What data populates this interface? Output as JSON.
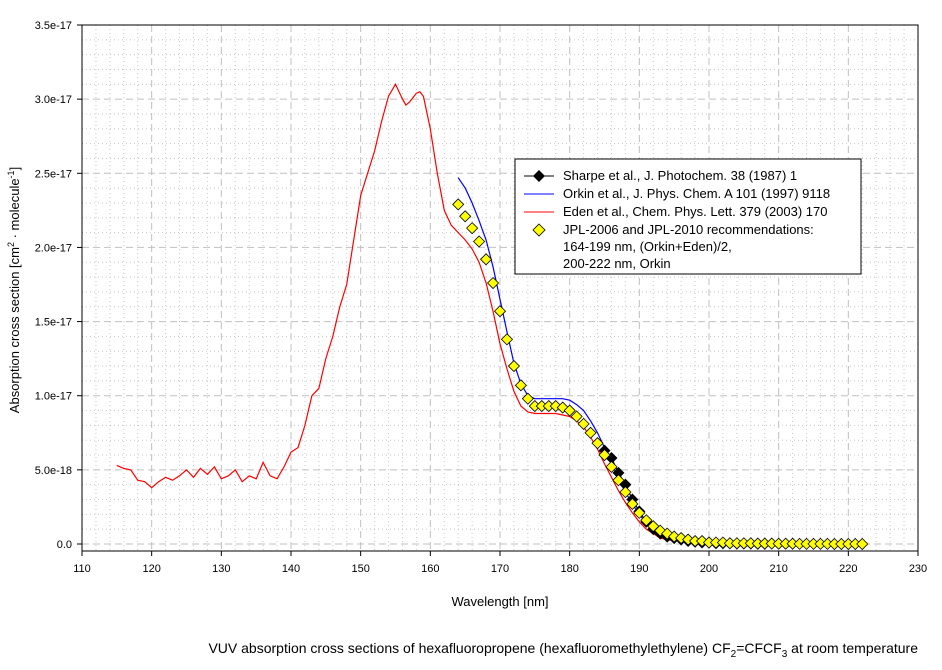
{
  "chart_data": {
    "type": "line",
    "xlabel": "Wavelength [nm]",
    "ylabel": {
      "main": "Absorption cross section [cm",
      "sup1": "2",
      "mid": " · molecule",
      "sup2": "-1",
      "end": "]"
    },
    "xlim": [
      110,
      230
    ],
    "ylim": [
      0,
      3.5e-17
    ],
    "x_ticks": [
      110,
      120,
      130,
      140,
      150,
      160,
      170,
      180,
      190,
      200,
      210,
      220,
      230
    ],
    "y_ticks": [
      0,
      5e-18,
      1e-17,
      1.5e-17,
      2e-17,
      2.5e-17,
      3e-17,
      3.5e-17
    ],
    "y_tick_labels": [
      "0.0",
      "5.0e-18",
      "1.0e-17",
      "1.5e-17",
      "2.0e-17",
      "2.5e-17",
      "3.0e-17",
      "3.5e-17"
    ],
    "grid": true,
    "legend_position": "upper-right",
    "caption": {
      "a": "VUV absorption cross sections of hexafluoropropene (hexafluoromethylethylene) CF",
      "b": "2",
      "c": "=CFCF",
      "d": "3",
      "e": " at room temperature"
    },
    "series": [
      {
        "name": "Sharpe et al., J. Photochem. 38 (1987) 1",
        "style": "line-diamond",
        "color": "#000000",
        "x": [
          185,
          186,
          187,
          188,
          189,
          190,
          191,
          192,
          193,
          194,
          195,
          196,
          197,
          198,
          199,
          200,
          201,
          202,
          203,
          204,
          205,
          206,
          207,
          208
        ],
        "y": [
          6.3e-18,
          5.8e-18,
          4.8e-18,
          4e-18,
          3e-18,
          2.2e-18,
          1.5e-18,
          1e-18,
          7e-19,
          5e-19,
          4e-19,
          3e-19,
          2e-19,
          1.5e-19,
          1e-19,
          1e-19,
          5e-20,
          5e-20,
          5e-20,
          3e-20,
          3e-20,
          3e-20,
          2e-20,
          2e-20
        ]
      },
      {
        "name": "Orkin et al., J. Phys. Chem. A 101 (1997) 9118",
        "style": "line",
        "color": "#0000ff",
        "x": [
          164,
          165,
          166,
          167,
          168,
          169,
          170,
          171,
          172,
          173,
          174,
          175,
          176,
          177,
          178,
          179,
          180,
          181,
          182,
          183,
          184,
          185,
          186,
          187,
          188,
          189,
          190,
          191,
          192,
          193,
          194,
          196,
          198,
          200,
          204,
          209
        ],
        "y": [
          2.47e-17,
          2.4e-17,
          2.3e-17,
          2.18e-17,
          2.05e-17,
          1.87e-17,
          1.65e-17,
          1.43e-17,
          1.22e-17,
          1.08e-17,
          1e-17,
          9.8e-18,
          9.8e-18,
          9.8e-18,
          9.8e-18,
          9.8e-18,
          9.7e-18,
          9.4e-18,
          9e-18,
          8.3e-18,
          7.5e-18,
          6.5e-18,
          5.5e-18,
          4.4e-18,
          3.5e-18,
          2.7e-18,
          2e-18,
          1.4e-18,
          1e-18,
          8e-19,
          6e-19,
          3e-19,
          2e-19,
          1e-19,
          5e-20,
          2e-20
        ]
      },
      {
        "name": "Eden et al., Chem. Phys. Lett. 379 (2003) 170",
        "style": "line",
        "color": "#ff0000",
        "x": [
          115,
          116,
          117,
          118,
          119,
          120,
          121,
          122,
          123,
          124,
          125,
          126,
          127,
          128,
          129,
          130,
          131,
          132,
          133,
          134,
          135,
          136,
          137,
          138,
          139,
          140,
          141,
          142,
          143,
          144,
          145,
          146,
          147,
          148,
          149,
          150,
          151,
          152,
          153,
          154,
          155,
          156,
          156.5,
          157,
          158,
          158.5,
          159,
          160,
          161,
          162,
          163,
          164,
          165,
          166,
          167,
          168,
          169,
          170,
          171,
          172,
          173,
          174,
          175,
          176,
          177,
          178,
          179,
          180,
          181,
          182,
          183,
          184,
          185,
          186,
          187,
          188,
          189,
          190,
          191,
          192,
          193,
          194,
          195
        ],
        "y": [
          5.3e-18,
          5.1e-18,
          5e-18,
          4.3e-18,
          4.2e-18,
          3.8e-18,
          4.2e-18,
          4.5e-18,
          4.3e-18,
          4.6e-18,
          5e-18,
          4.5e-18,
          5.1e-18,
          4.7e-18,
          5.2e-18,
          4.4e-18,
          4.6e-18,
          5e-18,
          4.2e-18,
          4.6e-18,
          4.4e-18,
          5.5e-18,
          4.6e-18,
          4.4e-18,
          5.2e-18,
          6.2e-18,
          6.5e-18,
          8e-18,
          1e-17,
          1.05e-17,
          1.25e-17,
          1.4e-17,
          1.6e-17,
          1.75e-17,
          2.05e-17,
          2.35e-17,
          2.5e-17,
          2.65e-17,
          2.85e-17,
          3.02e-17,
          3.1e-17,
          3e-17,
          2.96e-17,
          2.98e-17,
          3.04e-17,
          3.05e-17,
          3.02e-17,
          2.8e-17,
          2.5e-17,
          2.25e-17,
          2.15e-17,
          2.1e-17,
          2.05e-17,
          1.99e-17,
          1.9e-17,
          1.76e-17,
          1.57e-17,
          1.35e-17,
          1.18e-17,
          1.03e-17,
          9.3e-18,
          8.9e-18,
          8.8e-18,
          8.8e-18,
          8.8e-18,
          8.8e-18,
          8.7e-18,
          8.6e-18,
          8.3e-18,
          7.9e-18,
          7.2e-18,
          6.4e-18,
          5.4e-18,
          4.5e-18,
          3.6e-18,
          2.8e-18,
          2.1e-18,
          1.5e-18,
          1e-18,
          7e-19,
          4e-19,
          3e-19,
          2e-19
        ]
      },
      {
        "name": "JPL-2006 and JPL-2010  recommendations:",
        "name_line2": "164-199 nm, (Orkin+Eden)/2,",
        "name_line3": "200-222 nm, Orkin",
        "style": "diamond",
        "color": "#ffff00",
        "x": [
          164,
          165,
          166,
          167,
          168,
          169,
          170,
          171,
          172,
          173,
          174,
          175,
          176,
          177,
          178,
          179,
          180,
          181,
          182,
          183,
          184,
          185,
          186,
          187,
          188,
          189,
          190,
          191,
          192,
          193,
          194,
          195,
          196,
          197,
          198,
          199,
          200,
          201,
          202,
          203,
          204,
          205,
          206,
          207,
          208,
          209,
          210,
          211,
          212,
          213,
          214,
          215,
          216,
          217,
          218,
          219,
          220,
          221,
          222
        ],
        "y": [
          2.29e-17,
          2.21e-17,
          2.13e-17,
          2.04e-17,
          1.92e-17,
          1.76e-17,
          1.57e-17,
          1.38e-17,
          1.2e-17,
          1.07e-17,
          9.8e-18,
          9.3e-18,
          9.3e-18,
          9.3e-18,
          9.3e-18,
          9.2e-18,
          9e-18,
          8.6e-18,
          8.1e-18,
          7.5e-18,
          6.8e-18,
          6e-18,
          5.2e-18,
          4.3e-18,
          3.5e-18,
          2.7e-18,
          2.1e-18,
          1.6e-18,
          1.2e-18,
          9e-19,
          7e-19,
          5e-19,
          4e-19,
          3e-19,
          2e-19,
          2e-19,
          1e-19,
          1e-19,
          1e-19,
          5e-20,
          5e-20,
          5e-20,
          5e-20,
          3e-20,
          3e-20,
          3e-20,
          2e-20,
          2e-20,
          2e-20,
          1e-20,
          1e-20,
          1e-20,
          1e-20,
          1e-20,
          0,
          0,
          0,
          0,
          0
        ]
      }
    ]
  }
}
